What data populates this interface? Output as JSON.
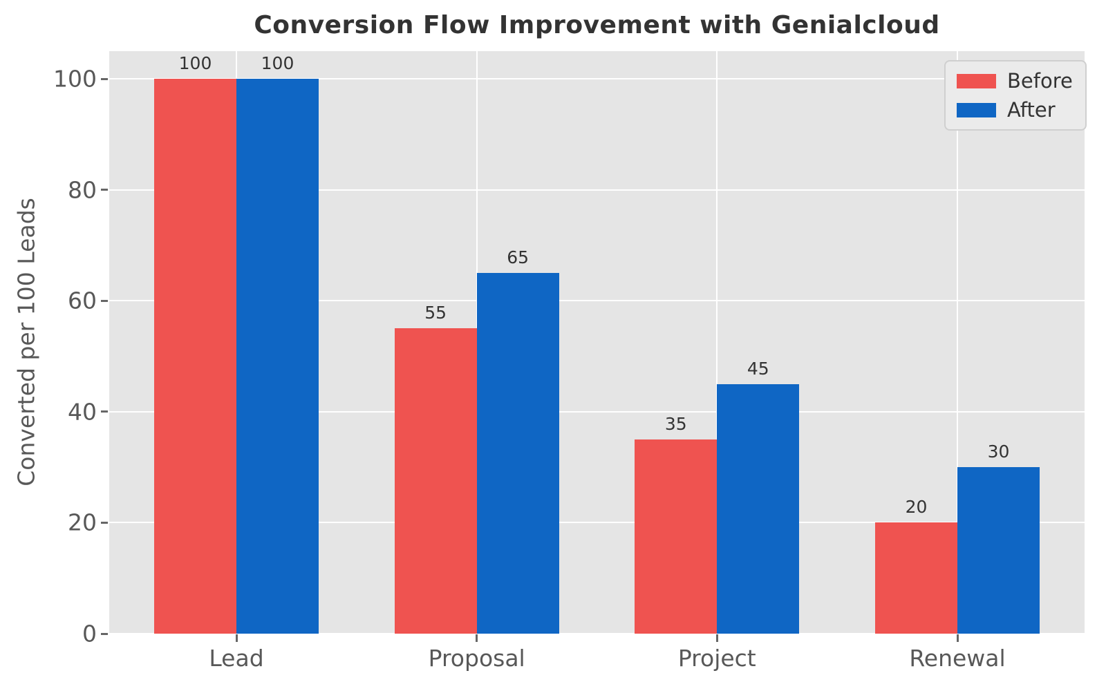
{
  "title": "Conversion Flow Improvement with Genialcloud",
  "chart_data": {
    "type": "bar",
    "title": "Conversion Flow Improvement with Genialcloud",
    "xlabel": "",
    "ylabel": "Converted per 100 Leads",
    "categories": [
      "Lead",
      "Proposal",
      "Project",
      "Renewal"
    ],
    "series": [
      {
        "name": "Before",
        "color": "#ef5350",
        "values": [
          100,
          55,
          35,
          20
        ]
      },
      {
        "name": "After",
        "color": "#0f66c4",
        "values": [
          100,
          65,
          45,
          30
        ]
      }
    ],
    "bar_value_labels": [
      [
        "100",
        "100"
      ],
      [
        "55",
        "65"
      ],
      [
        "35",
        "45"
      ],
      [
        "20",
        "30"
      ]
    ],
    "ylim": [
      0,
      105
    ],
    "yticks": [
      "0",
      "20",
      "40",
      "60",
      "80",
      "100"
    ],
    "grid": true,
    "legend_position": "upper right",
    "legend": {
      "items": [
        {
          "label": "Before",
          "color": "#ef5350"
        },
        {
          "label": "After",
          "color": "#0f66c4"
        }
      ]
    },
    "style": {
      "figure_bg": "#ffffff",
      "plot_bg": "#e5e5e5",
      "grid_color": "#ffffff",
      "tick_color": "#585858",
      "title_color": "#333333",
      "value_label_color": "#333333",
      "legend_bg": "#ebebeb",
      "legend_border": "#cfcfcf"
    }
  }
}
